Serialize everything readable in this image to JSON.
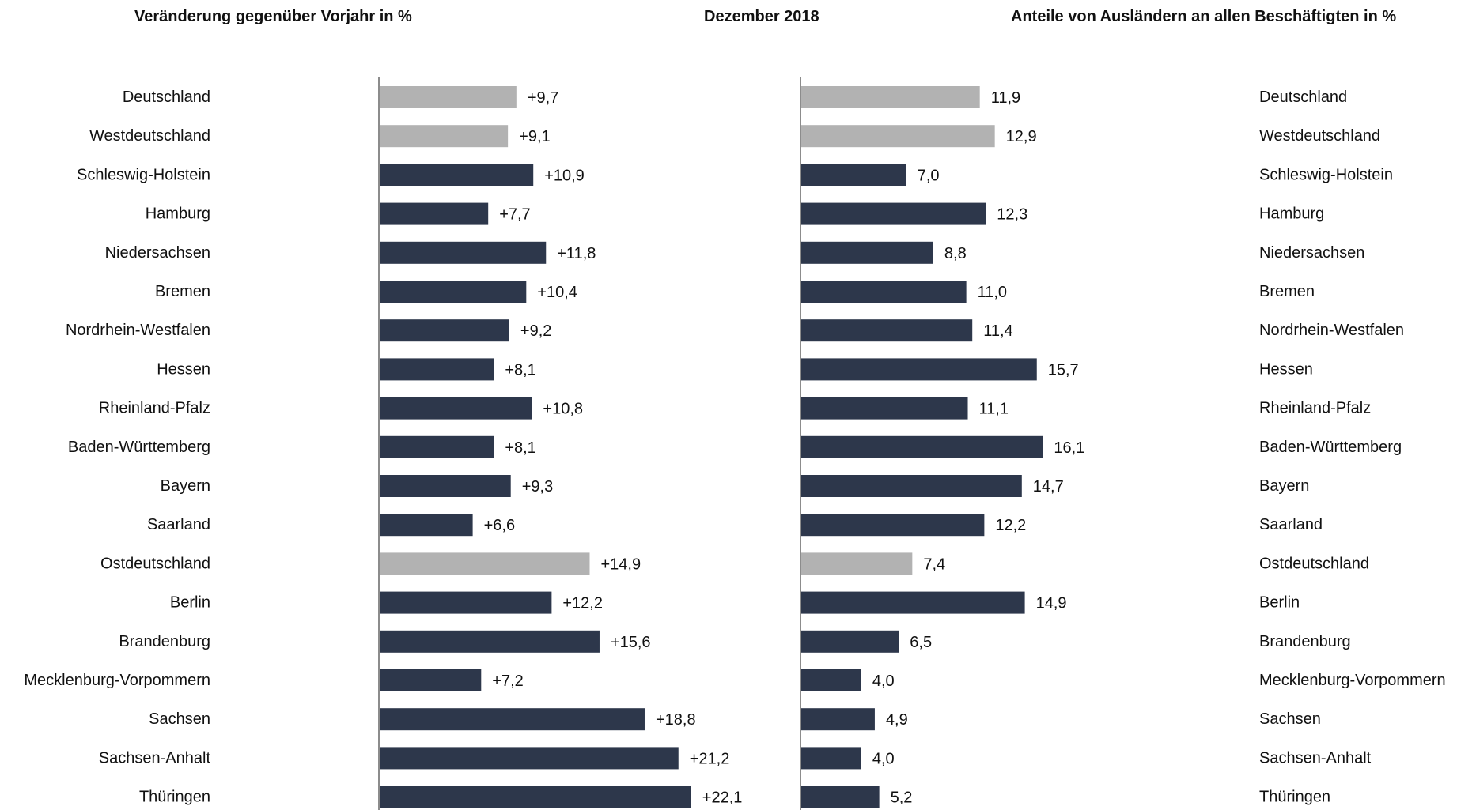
{
  "header": {
    "left_title": "Veränderung gegenüber Vorjahr in %",
    "center_title": "Dezember 2018",
    "right_title": "Anteile von Ausländern an allen Beschäftigten in %"
  },
  "colors": {
    "highlight": "#b2b2b2",
    "regular": "#2d374b",
    "axis": "#404040"
  },
  "chart_data": [
    {
      "type": "bar",
      "orientation": "horizontal",
      "title": "Veränderung gegenüber Vorjahr in %",
      "categories": [
        "Deutschland",
        "Westdeutschland",
        "Schleswig-Holstein",
        "Hamburg",
        "Niedersachsen",
        "Bremen",
        "Nordrhein-Westfalen",
        "Hessen",
        "Rheinland-Pfalz",
        "Baden-Württemberg",
        "Bayern",
        "Saarland",
        "Ostdeutschland",
        "Berlin",
        "Brandenburg",
        "Mecklenburg-Vorpommern",
        "Sachsen",
        "Sachsen-Anhalt",
        "Thüringen"
      ],
      "values": [
        9.7,
        9.1,
        10.9,
        7.7,
        11.8,
        10.4,
        9.2,
        8.1,
        10.8,
        8.1,
        9.3,
        6.6,
        14.9,
        12.2,
        15.6,
        7.2,
        18.8,
        21.2,
        22.1
      ],
      "value_labels": [
        "+9,7",
        "+9,1",
        "+10,9",
        "+7,7",
        "+11,8",
        "+10,4",
        "+9,2",
        "+8,1",
        "+10,8",
        "+8,1",
        "+9,3",
        "+6,6",
        "+14,9",
        "+12,2",
        "+15,6",
        "+7,2",
        "+18,8",
        "+21,2",
        "+22,1"
      ],
      "highlighted": [
        "Deutschland",
        "Westdeutschland",
        "Ostdeutschland"
      ],
      "xlim": [
        0,
        27.5
      ],
      "grid": false,
      "legend": "none"
    },
    {
      "type": "bar",
      "orientation": "horizontal",
      "title": "Anteile von Ausländern an allen Beschäftigten in %",
      "categories": [
        "Deutschland",
        "Westdeutschland",
        "Schleswig-Holstein",
        "Hamburg",
        "Niedersachsen",
        "Bremen",
        "Nordrhein-Westfalen",
        "Hessen",
        "Rheinland-Pfalz",
        "Baden-Württemberg",
        "Bayern",
        "Saarland",
        "Ostdeutschland",
        "Berlin",
        "Brandenburg",
        "Mecklenburg-Vorpommern",
        "Sachsen",
        "Sachsen-Anhalt",
        "Thüringen"
      ],
      "values": [
        11.9,
        12.9,
        7.0,
        12.3,
        8.8,
        11.0,
        11.4,
        15.7,
        11.1,
        16.1,
        14.7,
        12.2,
        7.4,
        14.9,
        6.5,
        4.0,
        4.9,
        4.0,
        5.2
      ],
      "value_labels": [
        "11,9",
        "12,9",
        "7,0",
        "12,3",
        "8,8",
        "11,0",
        "11,4",
        "15,7",
        "11,1",
        "16,1",
        "14,7",
        "12,2",
        "7,4",
        "14,9",
        "6,5",
        "4,0",
        "4,9",
        "4,0",
        "5,2"
      ],
      "highlighted": [
        "Deutschland",
        "Westdeutschland",
        "Ostdeutschland"
      ],
      "xlim": [
        0,
        23.2
      ],
      "grid": false,
      "legend": "none"
    }
  ]
}
